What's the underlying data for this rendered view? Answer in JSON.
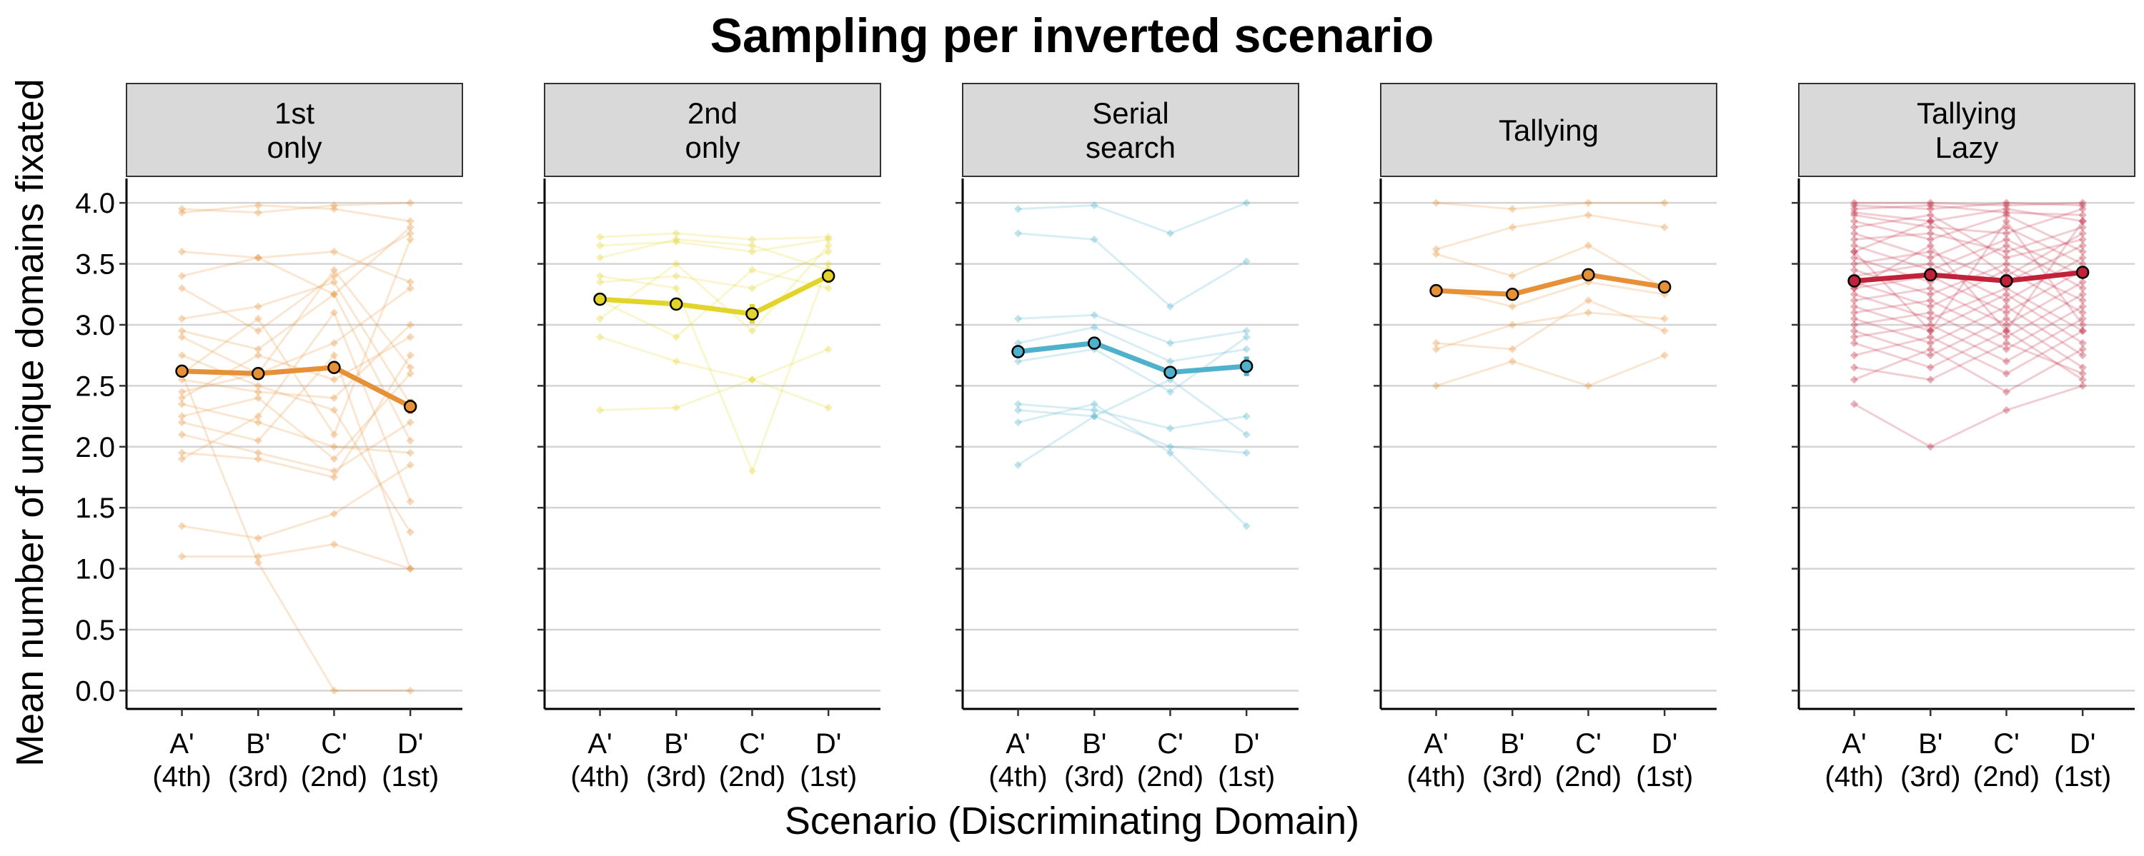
{
  "chart_data": {
    "type": "line",
    "title": "Sampling per inverted scenario",
    "xlabel": "Scenario (Discriminating Domain)",
    "ylabel": "Mean number of unique domains fixated",
    "ylim": [
      -0.15,
      4.2
    ],
    "yticks": [
      "0.0",
      "0.5",
      "1.0",
      "1.5",
      "2.0",
      "2.5",
      "3.0",
      "3.5",
      "4.0"
    ],
    "categories": [
      {
        "letter": "A'",
        "rank": "(4th)"
      },
      {
        "letter": "B'",
        "rank": "(3rd)"
      },
      {
        "letter": "C'",
        "rank": "(2nd)"
      },
      {
        "letter": "D'",
        "rank": "(1st)"
      }
    ],
    "grid": "horizontal",
    "legend": "none",
    "panels": [
      {
        "strip": [
          "1st",
          "only"
        ],
        "color": "#E69138",
        "mean": [
          2.62,
          2.6,
          2.65,
          2.33
        ],
        "error": [
          0.05,
          0.04,
          0.05,
          0.06
        ],
        "participants": [
          [
            3.95,
            3.92,
            3.98,
            4.0
          ],
          [
            3.92,
            3.98,
            3.95,
            3.85
          ],
          [
            3.6,
            3.55,
            3.6,
            3.35
          ],
          [
            3.4,
            3.55,
            3.25,
            2.05
          ],
          [
            3.3,
            2.95,
            3.4,
            3.75
          ],
          [
            3.05,
            3.15,
            3.35,
            2.35
          ],
          [
            2.95,
            2.8,
            3.25,
            3.8
          ],
          [
            2.9,
            2.6,
            2.85,
            3.3
          ],
          [
            2.75,
            2.5,
            2.3,
            1.3
          ],
          [
            2.6,
            3.05,
            2.1,
            3.7
          ],
          [
            2.55,
            2.45,
            2.4,
            3.0
          ],
          [
            2.4,
            2.75,
            2.55,
            2.9
          ],
          [
            2.35,
            2.2,
            2.0,
            1.95
          ],
          [
            2.25,
            2.4,
            1.9,
            2.6
          ],
          [
            2.2,
            2.05,
            2.75,
            1.0
          ],
          [
            2.1,
            1.95,
            1.8,
            2.2
          ],
          [
            1.95,
            1.9,
            1.75,
            2.75
          ],
          [
            1.9,
            2.25,
            3.1,
            1.55
          ],
          [
            1.35,
            1.25,
            1.45,
            1.85
          ],
          [
            1.1,
            1.1,
            1.2,
            1.0
          ],
          [
            2.6,
            1.05,
            0.0,
            0.0
          ],
          [
            2.45,
            2.6,
            3.45,
            2.65
          ]
        ]
      },
      {
        "strip": [
          "2nd",
          "only"
        ],
        "color": "#E2D42A",
        "mean": [
          3.21,
          3.17,
          3.09,
          3.4
        ],
        "error": [
          0.04,
          0.03,
          0.08,
          0.06
        ],
        "participants": [
          [
            3.72,
            3.75,
            3.7,
            3.72
          ],
          [
            3.65,
            3.68,
            3.6,
            3.7
          ],
          [
            3.55,
            3.7,
            3.65,
            3.45
          ],
          [
            3.35,
            3.4,
            3.3,
            3.6
          ],
          [
            3.2,
            2.9,
            3.45,
            3.3
          ],
          [
            3.05,
            3.5,
            2.95,
            3.65
          ],
          [
            2.9,
            2.7,
            2.55,
            2.8
          ],
          [
            2.3,
            2.32,
            2.55,
            2.32
          ],
          [
            3.4,
            3.3,
            1.8,
            3.5
          ]
        ]
      },
      {
        "strip": [
          "Serial",
          "search"
        ],
        "color": "#4FB1CC",
        "mean": [
          2.78,
          2.85,
          2.61,
          2.66
        ],
        "error": [
          0.03,
          0.03,
          0.05,
          0.08
        ],
        "participants": [
          [
            3.95,
            3.98,
            3.75,
            4.0
          ],
          [
            3.75,
            3.7,
            3.15,
            3.52
          ],
          [
            3.05,
            3.08,
            2.85,
            2.95
          ],
          [
            2.85,
            2.98,
            2.7,
            2.8
          ],
          [
            2.7,
            2.8,
            2.45,
            2.9
          ],
          [
            2.35,
            2.3,
            2.15,
            2.25
          ],
          [
            2.3,
            2.25,
            2.0,
            1.95
          ],
          [
            2.2,
            2.35,
            1.95,
            1.35
          ],
          [
            1.85,
            2.25,
            2.55,
            2.1
          ]
        ]
      },
      {
        "strip": [
          "Tallying"
        ],
        "color": "#E69138",
        "mean": [
          3.28,
          3.25,
          3.41,
          3.31
        ],
        "error": [
          0.04,
          0.03,
          0.04,
          0.05
        ],
        "participants": [
          [
            4.0,
            3.95,
            4.0,
            4.0
          ],
          [
            3.62,
            3.8,
            3.9,
            3.8
          ],
          [
            3.58,
            3.4,
            3.65,
            3.3
          ],
          [
            3.3,
            3.15,
            3.35,
            3.25
          ],
          [
            2.85,
            2.8,
            3.2,
            2.95
          ],
          [
            2.8,
            3.0,
            3.1,
            3.05
          ],
          [
            2.5,
            2.7,
            2.5,
            2.75
          ]
        ]
      },
      {
        "strip": [
          "Tallying",
          "Lazy"
        ],
        "color": "#C0223A",
        "mean": [
          3.36,
          3.41,
          3.36,
          3.43
        ],
        "error": [
          0.03,
          0.03,
          0.03,
          0.03
        ],
        "participants": [
          [
            4.0,
            4.0,
            3.98,
            4.0
          ],
          [
            3.98,
            3.95,
            4.0,
            3.98
          ],
          [
            3.95,
            3.98,
            3.92,
            3.9
          ],
          [
            3.92,
            3.85,
            3.95,
            3.85
          ],
          [
            3.9,
            3.8,
            3.75,
            3.95
          ],
          [
            3.85,
            3.7,
            3.9,
            3.6
          ],
          [
            3.8,
            3.9,
            3.55,
            3.7
          ],
          [
            3.75,
            3.55,
            3.8,
            3.5
          ],
          [
            3.7,
            3.75,
            3.6,
            3.8
          ],
          [
            3.65,
            3.45,
            3.7,
            3.4
          ],
          [
            3.6,
            3.85,
            3.4,
            3.75
          ],
          [
            3.55,
            3.35,
            3.65,
            3.3
          ],
          [
            3.5,
            3.6,
            3.35,
            3.65
          ],
          [
            3.45,
            3.25,
            3.5,
            3.2
          ],
          [
            3.4,
            3.5,
            3.2,
            3.55
          ],
          [
            3.35,
            3.15,
            3.45,
            3.1
          ],
          [
            3.3,
            3.4,
            3.1,
            3.45
          ],
          [
            3.25,
            3.05,
            3.3,
            2.95
          ],
          [
            3.2,
            3.3,
            3.0,
            3.35
          ],
          [
            3.15,
            2.95,
            3.25,
            2.85
          ],
          [
            3.1,
            3.2,
            2.9,
            3.25
          ],
          [
            3.05,
            2.85,
            3.15,
            2.75
          ],
          [
            3.0,
            3.1,
            2.8,
            3.15
          ],
          [
            2.95,
            2.75,
            3.05,
            2.65
          ],
          [
            2.9,
            3.0,
            2.7,
            3.05
          ],
          [
            2.85,
            2.65,
            2.95,
            2.55
          ],
          [
            2.75,
            2.9,
            2.6,
            2.95
          ],
          [
            2.65,
            2.55,
            2.85,
            2.6
          ],
          [
            2.55,
            2.8,
            2.45,
            2.8
          ],
          [
            2.35,
            2.0,
            2.3,
            2.5
          ],
          [
            3.6,
            2.95,
            3.85,
            3.0
          ],
          [
            3.3,
            3.65,
            2.95,
            3.85
          ]
        ]
      }
    ]
  }
}
